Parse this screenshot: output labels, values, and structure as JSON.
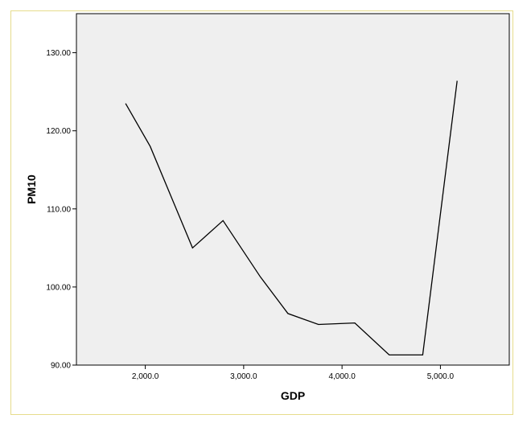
{
  "chart_data": {
    "type": "line",
    "xlabel": "GDP",
    "ylabel": "PM10",
    "xlim": [
      1300,
      5700
    ],
    "ylim": [
      90,
      135
    ],
    "xticks": [
      2000,
      3000,
      4000,
      5000
    ],
    "xtick_labels": [
      "2,000.0",
      "3,000.0",
      "4,000.0",
      "5,000.0"
    ],
    "yticks": [
      90,
      100,
      110,
      120,
      130
    ],
    "ytick_labels": [
      "90.00",
      "100.00",
      "110.00",
      "120.00",
      "130.00"
    ],
    "grid": false,
    "series": [
      {
        "x": [
          1800,
          2050,
          2480,
          2790,
          3170,
          3450,
          3760,
          4130,
          4480,
          4820,
          5170
        ],
        "values": [
          123.5,
          118.0,
          105.0,
          108.5,
          101.3,
          96.6,
          95.2,
          95.4,
          91.3,
          91.3,
          126.4
        ]
      }
    ],
    "colors": {
      "plot_background": "#efefef",
      "line": "#000000",
      "frame_border": "#e6dc8c"
    }
  }
}
